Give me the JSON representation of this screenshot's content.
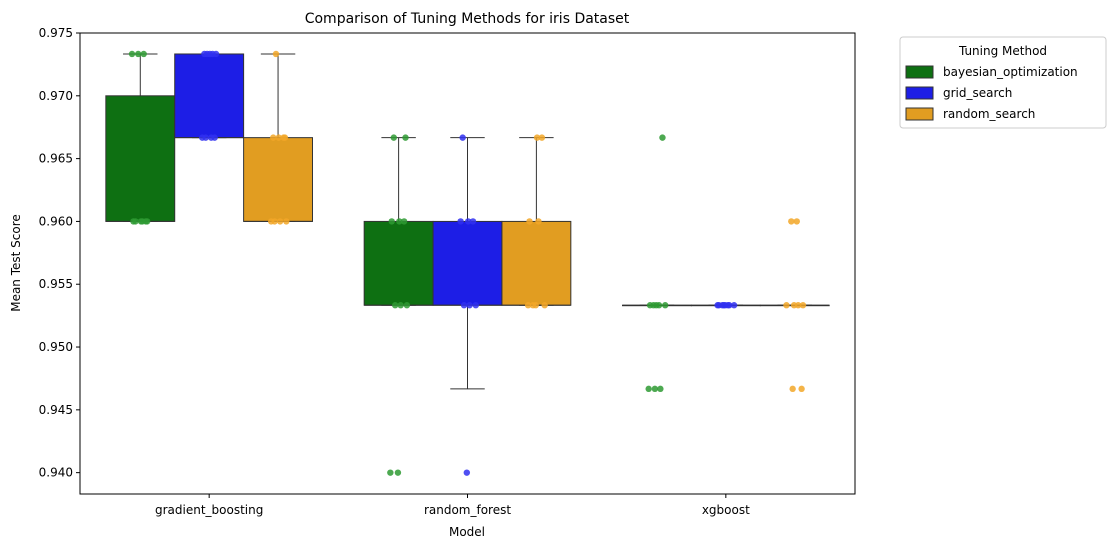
{
  "chart_data": {
    "type": "box",
    "title": "Comparison of Tuning Methods for iris Dataset",
    "xlabel": "Model",
    "ylabel": "Mean Test Score",
    "categories": [
      "gradient_boosting",
      "random_forest",
      "xgboost"
    ],
    "ylim": [
      0.9383,
      0.975
    ],
    "yticks": [
      0.94,
      0.945,
      0.95,
      0.955,
      0.96,
      0.965,
      0.97,
      0.975
    ],
    "ytick_labels": [
      "0.940",
      "0.945",
      "0.950",
      "0.955",
      "0.960",
      "0.965",
      "0.970",
      "0.975"
    ],
    "grid": false,
    "legend": {
      "title": "Tuning Method",
      "placement": "outside-top-right"
    },
    "series": [
      {
        "name": "bayesian_optimization",
        "color": "#0e7012",
        "point_color": "#2e9a33",
        "boxes": [
          {
            "q1": 0.96,
            "median": 0.96,
            "q3": 0.97,
            "whisker_low": 0.96,
            "whisker_high": 0.97333,
            "fliers": []
          },
          {
            "q1": 0.95333,
            "median": 0.95333,
            "q3": 0.96,
            "whisker_low": 0.95333,
            "whisker_high": 0.96667,
            "fliers": [
              0.94
            ]
          },
          {
            "q1": 0.95333,
            "median": 0.95333,
            "q3": 0.95333,
            "whisker_low": 0.95333,
            "whisker_high": 0.95333,
            "fliers": [
              0.96667,
              0.94667
            ]
          }
        ],
        "points": [
          [
            0.97333,
            0.97333,
            0.97333,
            0.96,
            0.96,
            0.96,
            0.96,
            0.96,
            0.96
          ],
          [
            0.96667,
            0.96667,
            0.96,
            0.96,
            0.96,
            0.95333,
            0.95333,
            0.95333,
            0.94,
            0.94
          ],
          [
            0.96667,
            0.95333,
            0.95333,
            0.95333,
            0.95333,
            0.95333,
            0.94667,
            0.94667,
            0.94667
          ]
        ]
      },
      {
        "name": "grid_search",
        "color": "#1d1ee6",
        "point_color": "#3030f0",
        "boxes": [
          {
            "q1": 0.96667,
            "median": 0.96667,
            "q3": 0.97333,
            "whisker_low": 0.96667,
            "whisker_high": 0.97333,
            "fliers": []
          },
          {
            "q1": 0.95333,
            "median": 0.95333,
            "q3": 0.96,
            "whisker_low": 0.94667,
            "whisker_high": 0.96667,
            "fliers": [
              0.94
            ]
          },
          {
            "q1": 0.95333,
            "median": 0.95333,
            "q3": 0.95333,
            "whisker_low": 0.95333,
            "whisker_high": 0.95333,
            "fliers": []
          }
        ],
        "points": [
          [
            0.97333,
            0.97333,
            0.97333,
            0.97333,
            0.97333,
            0.96667,
            0.96667,
            0.96667,
            0.96667
          ],
          [
            0.96667,
            0.96,
            0.96,
            0.96,
            0.95333,
            0.95333,
            0.95333,
            0.94
          ],
          [
            0.95333,
            0.95333,
            0.95333,
            0.95333,
            0.95333,
            0.95333,
            0.95333,
            0.95333
          ]
        ]
      },
      {
        "name": "random_search",
        "color": "#e19d21",
        "point_color": "#f2a728",
        "boxes": [
          {
            "q1": 0.96,
            "median": 0.96,
            "q3": 0.96667,
            "whisker_low": 0.96,
            "whisker_high": 0.97333,
            "fliers": []
          },
          {
            "q1": 0.95333,
            "median": 0.95333,
            "q3": 0.96,
            "whisker_low": 0.95333,
            "whisker_high": 0.96667,
            "fliers": []
          },
          {
            "q1": 0.95333,
            "median": 0.95333,
            "q3": 0.95333,
            "whisker_low": 0.95333,
            "whisker_high": 0.95333,
            "fliers": [
              0.96,
              0.94667
            ]
          }
        ],
        "points": [
          [
            0.97333,
            0.96667,
            0.96667,
            0.96667,
            0.96667,
            0.96,
            0.96,
            0.96,
            0.96
          ],
          [
            0.96667,
            0.96667,
            0.96,
            0.96,
            0.95333,
            0.95333,
            0.95333,
            0.95333
          ],
          [
            0.96,
            0.96,
            0.95333,
            0.95333,
            0.95333,
            0.95333,
            0.94667,
            0.94667
          ]
        ]
      }
    ]
  }
}
